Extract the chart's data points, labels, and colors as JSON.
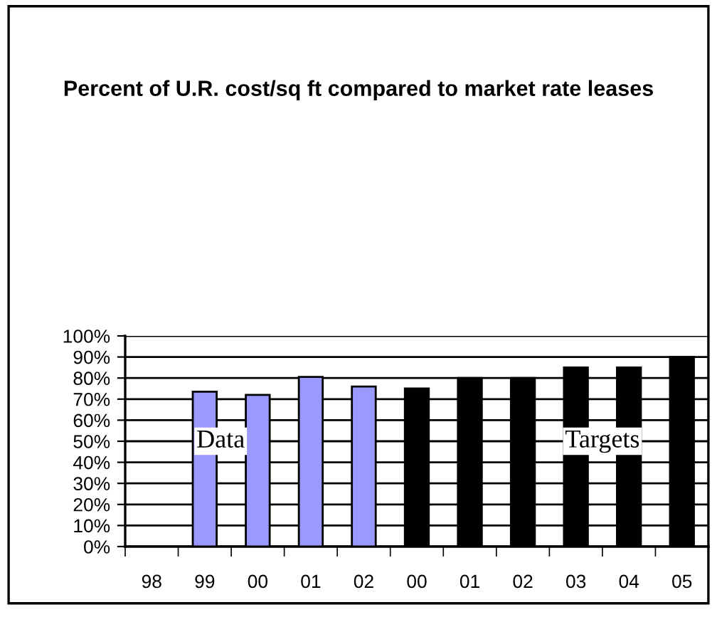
{
  "chart_data": {
    "type": "bar",
    "title": "Percent of U.R. cost/sq ft compared to market rate leases",
    "categories": [
      "98",
      "99",
      "00",
      "01",
      "02",
      "00",
      "01",
      "02",
      "03",
      "04",
      "05"
    ],
    "values": [
      null,
      73.5,
      72,
      80.5,
      76,
      75,
      80,
      80,
      85,
      85,
      90
    ],
    "colors": [
      "#9999ff",
      "#9999ff",
      "#9999ff",
      "#9999ff",
      "#9999ff",
      "#000000",
      "#000000",
      "#000000",
      "#000000",
      "#000000",
      "#000000"
    ],
    "ylim": [
      0,
      100
    ],
    "yticks": [
      {
        "value": 0,
        "label": "0%"
      },
      {
        "value": 10,
        "label": "10%"
      },
      {
        "value": 20,
        "label": "20%"
      },
      {
        "value": 30,
        "label": "30%"
      },
      {
        "value": 40,
        "label": "40%"
      },
      {
        "value": 50,
        "label": "50%"
      },
      {
        "value": 60,
        "label": "60%"
      },
      {
        "value": 70,
        "label": "70%"
      },
      {
        "value": 80,
        "label": "80%"
      },
      {
        "value": 90,
        "label": "90%"
      },
      {
        "value": 100,
        "label": "100%"
      }
    ],
    "grid": "y",
    "annotations": [
      "Data",
      "Targets"
    ]
  }
}
